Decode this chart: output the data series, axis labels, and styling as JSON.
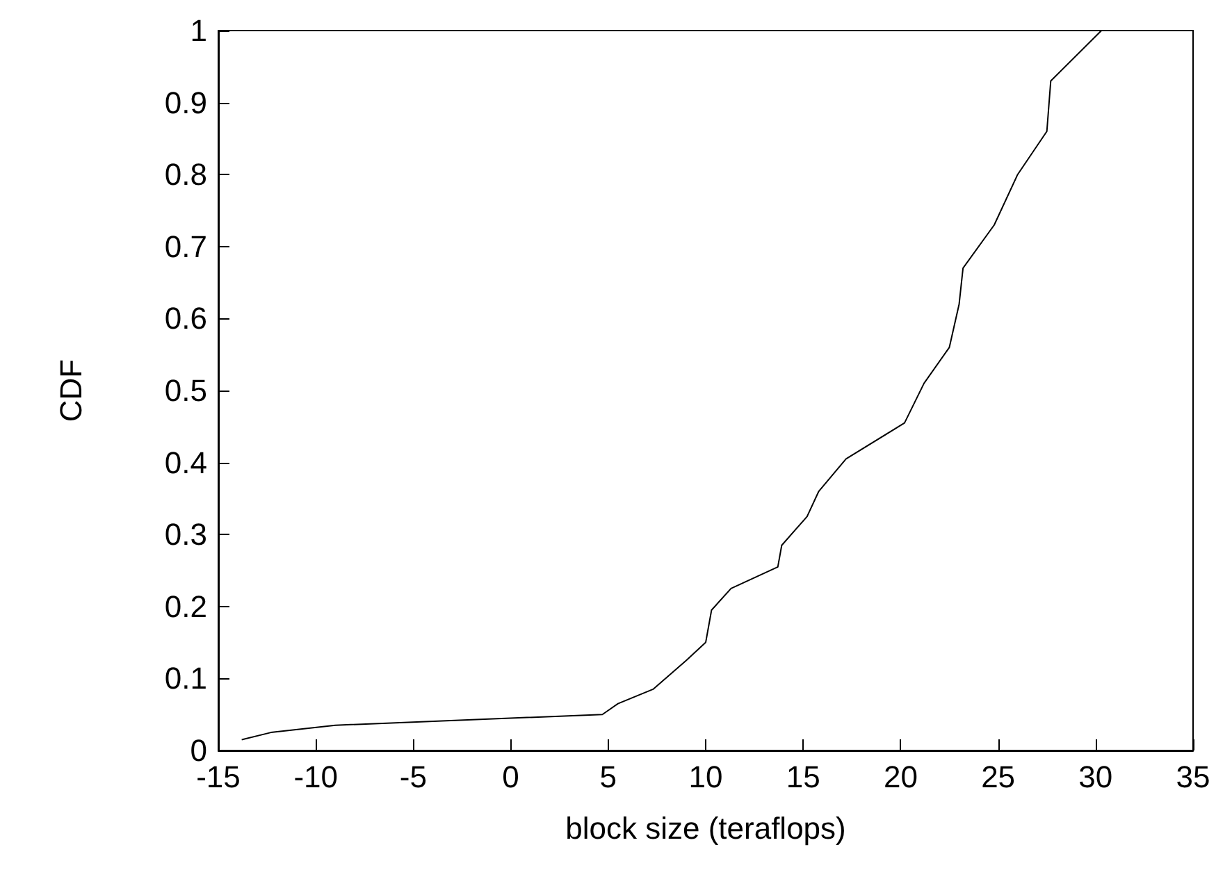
{
  "chart_data": {
    "type": "line",
    "xlabel": "block size (teraflops)",
    "ylabel": "CDF",
    "series": [
      {
        "color": "#000000",
        "x": [
          -13.8,
          -12.3,
          -9,
          4.7,
          5.5,
          7.3,
          9,
          10,
          10.3,
          11.3,
          13.7,
          13.9,
          15.2,
          15.8,
          17.2,
          20.2,
          21.2,
          22.5,
          23,
          23.2,
          24.8,
          26,
          27.5,
          27.7,
          30.3
        ],
        "values": [
          0.015,
          0.025,
          0.035,
          0.05,
          0.065,
          0.085,
          0.125,
          0.15,
          0.195,
          0.225,
          0.255,
          0.285,
          0.325,
          0.36,
          0.405,
          0.455,
          0.51,
          0.56,
          0.62,
          0.67,
          0.73,
          0.8,
          0.86,
          0.93,
          1.0
        ]
      }
    ],
    "xlim": [
      -15,
      35
    ],
    "xticks": [
      -15,
      -10,
      -5,
      0,
      5,
      10,
      15,
      20,
      25,
      30,
      35
    ],
    "ylim": [
      0,
      1
    ],
    "yticks": [
      0,
      0.1,
      0.2,
      0.3,
      0.4,
      0.5,
      0.6,
      0.7,
      0.8,
      0.9,
      1
    ],
    "grid": false,
    "marker": "none",
    "line_style": "solid"
  }
}
